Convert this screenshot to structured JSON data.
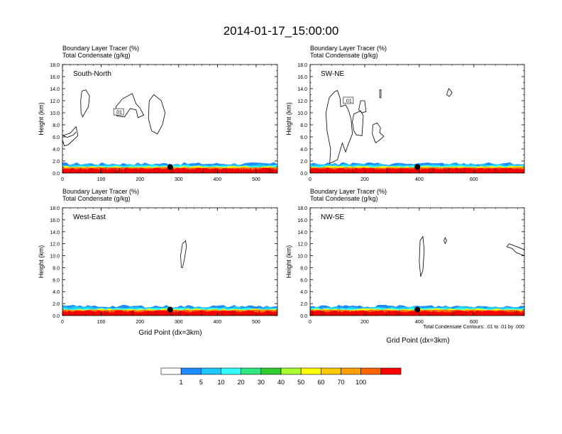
{
  "title": "2014-01-17_15:00:00",
  "xlabel": "Grid Point (dx=3km)",
  "footnote": "Total Condensate Contours: .01 to .01 by .000",
  "colorbar": {
    "levels": [
      "1",
      "5",
      "10",
      "20",
      "30",
      "40",
      "50",
      "60",
      "70",
      "100"
    ],
    "colors": [
      "#ffffff",
      "#1e8cff",
      "#1ec8ff",
      "#32ffff",
      "#32e682",
      "#32cd32",
      "#aaff32",
      "#ffff00",
      "#ffc800",
      "#ffa000",
      "#ff6400",
      "#ff0000"
    ]
  },
  "chart_data": [
    {
      "type": "contour",
      "panel_label": "South-North",
      "field_labels": [
        "Boundary Layer Tracer   (%)",
        "Total Condensate   (g/kg)"
      ],
      "ylabel": "Height (km)",
      "xlim": [
        0,
        555
      ],
      "ylim": [
        0,
        18
      ],
      "xticks": [
        "0",
        "100",
        "200",
        "300",
        "400",
        "500"
      ],
      "xtick_values": [
        0,
        100,
        200,
        300,
        400,
        500
      ],
      "yticks": [
        "0.0",
        "2.0",
        "4.0",
        "6.0",
        "8.0",
        "10.0",
        "12.0",
        "14.0",
        "16.0",
        "18.0"
      ],
      "contour_label": ".01",
      "contour_label_at": [
        145,
        10.1
      ],
      "marker": [
        278,
        1.0
      ],
      "contours": [
        [
          [
            48,
            10
          ],
          [
            47,
            12
          ],
          [
            50,
            13.6
          ],
          [
            60,
            13.8
          ],
          [
            70,
            12.8
          ],
          [
            67,
            11
          ],
          [
            52,
            9.3
          ],
          [
            48,
            10
          ]
        ],
        [
          [
            140,
            9.5
          ],
          [
            138,
            11
          ],
          [
            155,
            12.3
          ],
          [
            180,
            13.2
          ],
          [
            190,
            11.5
          ],
          [
            200,
            10.8
          ],
          [
            210,
            9.6
          ],
          [
            195,
            9.2
          ],
          [
            190,
            10.5
          ],
          [
            175,
            10.7
          ],
          [
            160,
            9.3
          ],
          [
            140,
            9.5
          ]
        ],
        [
          [
            230,
            7
          ],
          [
            222,
            9
          ],
          [
            224,
            12
          ],
          [
            236,
            13
          ],
          [
            255,
            12
          ],
          [
            265,
            10
          ],
          [
            258,
            8
          ],
          [
            245,
            6.5
          ],
          [
            230,
            7
          ]
        ],
        [
          [
            0,
            6.2
          ],
          [
            20,
            6.6
          ],
          [
            35,
            7.7
          ],
          [
            40,
            6.2
          ],
          [
            30,
            5.6
          ],
          [
            15,
            4.7
          ],
          [
            5,
            4.5
          ],
          [
            0,
            5.5
          ]
        ],
        [
          [
            0,
            6.3
          ],
          [
            12,
            5.9
          ],
          [
            28,
            6.3
          ],
          [
            35,
            6.8
          ]
        ]
      ]
    },
    {
      "type": "contour",
      "panel_label": "SW-NE",
      "field_labels": [
        "Boundary Layer Tracer   (%)",
        "Total Condensate   (g/kg)"
      ],
      "ylabel": "Height (km)",
      "xlim": [
        0,
        785
      ],
      "ylim": [
        0,
        18
      ],
      "xticks": [
        "0",
        "200",
        "400",
        "600"
      ],
      "xtick_values": [
        0,
        200,
        400,
        600
      ],
      "yticks": [
        "0.0",
        "2.0",
        "4.0",
        "6.0",
        "8.0",
        "10.0",
        "12.0",
        "14.0",
        "16.0",
        "18.0"
      ],
      "contour_label": ".01",
      "contour_label_at": [
        140,
        12.0
      ],
      "marker": [
        393,
        1.0
      ],
      "contours": [
        [
          [
            90,
            13.5
          ],
          [
            70,
            12.5
          ],
          [
            58,
            10
          ],
          [
            62,
            7
          ],
          [
            75,
            4
          ],
          [
            72,
            1.6
          ],
          [
            100,
            2.2
          ],
          [
            118,
            5
          ],
          [
            130,
            3.5
          ],
          [
            140,
            4.8
          ],
          [
            155,
            6.5
          ],
          [
            150,
            9
          ],
          [
            140,
            10.5
          ],
          [
            130,
            11.3
          ],
          [
            112,
            11
          ],
          [
            110,
            12.4
          ],
          [
            100,
            13.7
          ],
          [
            90,
            13.5
          ]
        ],
        [
          [
            160,
            9.8
          ],
          [
            155,
            8.5
          ],
          [
            160,
            7
          ],
          [
            170,
            6.3
          ],
          [
            190,
            6.2
          ],
          [
            195,
            9.5
          ],
          [
            185,
            10.3
          ],
          [
            160,
            9.8
          ]
        ],
        [
          [
            178,
            10.5
          ],
          [
            190,
            10
          ],
          [
            205,
            10.2
          ],
          [
            200,
            12
          ],
          [
            185,
            12
          ],
          [
            178,
            10.5
          ]
        ],
        [
          [
            230,
            8
          ],
          [
            228,
            6.5
          ],
          [
            240,
            5
          ],
          [
            255,
            5.5
          ],
          [
            270,
            6.1
          ],
          [
            255,
            6.7
          ],
          [
            258,
            7.5
          ],
          [
            245,
            8.3
          ],
          [
            230,
            8
          ]
        ],
        [
          [
            255,
            12.5
          ],
          [
            255,
            13.8
          ],
          [
            260,
            13.8
          ],
          [
            260,
            12.5
          ],
          [
            255,
            12.5
          ]
        ],
        [
          [
            500,
            13
          ],
          [
            508,
            14
          ],
          [
            515,
            13.7
          ],
          [
            520,
            13.3
          ],
          [
            510,
            12.7
          ],
          [
            500,
            13
          ]
        ]
      ]
    },
    {
      "type": "contour",
      "panel_label": "West-East",
      "field_labels": [
        "Boundary Layer Tracer   (%)",
        "Total Condensate   (g/kg)"
      ],
      "ylabel": "Height (km)",
      "xlim": [
        0,
        555
      ],
      "ylim": [
        0,
        18
      ],
      "xticks": [
        "0",
        "100",
        "200",
        "300",
        "400",
        "500"
      ],
      "xtick_values": [
        0,
        100,
        200,
        300,
        400,
        500
      ],
      "yticks": [
        "0.0",
        "2.0",
        "4.0",
        "6.0",
        "8.0",
        "10.0",
        "12.0",
        "14.0",
        "16.0",
        "18.0"
      ],
      "contour_label": "",
      "contour_label_at": null,
      "marker": [
        278,
        1.0
      ],
      "contours": [
        [
          [
            307,
            8
          ],
          [
            305,
            10
          ],
          [
            310,
            12
          ],
          [
            318,
            12.5
          ],
          [
            320,
            11.5
          ],
          [
            315,
            9.5
          ],
          [
            310,
            8
          ],
          [
            307,
            8
          ]
        ]
      ]
    },
    {
      "type": "contour",
      "panel_label": "NW-SE",
      "field_labels": [
        "Boundary Layer Tracer   (%)",
        "Total Condensate   (g/kg)"
      ],
      "ylabel": "Height (km)",
      "xlim": [
        0,
        785
      ],
      "ylim": [
        0,
        18
      ],
      "xticks": [
        "0",
        "200",
        "400",
        "600"
      ],
      "xtick_values": [
        0,
        200,
        400,
        600
      ],
      "yticks": [
        "0.0",
        "2.0",
        "4.0",
        "6.0",
        "8.0",
        "10.0",
        "12.0",
        "14.0",
        "16.0",
        "18.0"
      ],
      "contour_label": "",
      "contour_label_at": null,
      "marker": [
        393,
        1.0
      ],
      "contours": [
        [
          [
            405,
            6.5
          ],
          [
            400,
            9
          ],
          [
            403,
            12.5
          ],
          [
            413,
            13.2
          ],
          [
            418,
            11
          ],
          [
            413,
            7.5
          ],
          [
            405,
            6.5
          ]
        ],
        [
          [
            490,
            12.5
          ],
          [
            495,
            13
          ],
          [
            500,
            12.5
          ],
          [
            495,
            12
          ],
          [
            490,
            12.5
          ]
        ],
        [
          [
            720,
            11.5
          ],
          [
            730,
            12
          ],
          [
            785,
            11
          ],
          [
            785,
            10
          ],
          [
            755,
            10.5
          ],
          [
            740,
            11.2
          ],
          [
            720,
            11.5
          ]
        ]
      ]
    }
  ]
}
